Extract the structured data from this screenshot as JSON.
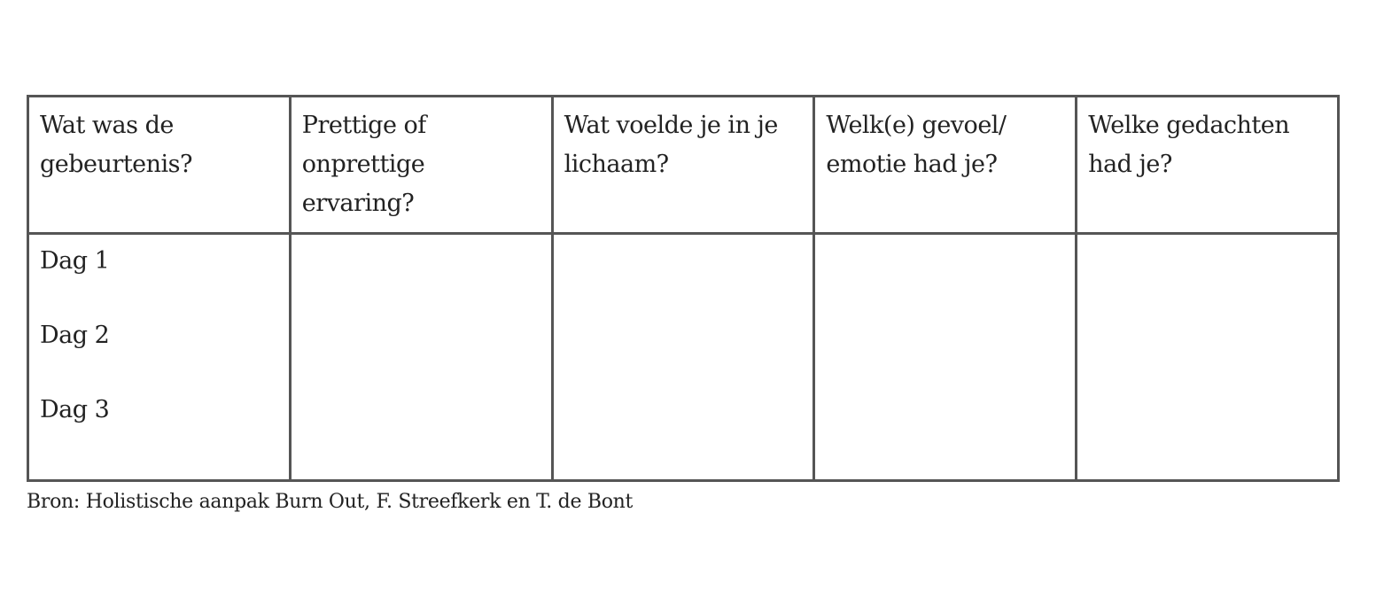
{
  "table": {
    "headers": [
      "Wat was de gebeurtenis?",
      "Prettige of onprettige ervaring?",
      "Wat voelde je in je lichaam?",
      "Welk(e) gevoel/ emotie had je?",
      "Welke gedachten had je?"
    ],
    "days": [
      "Dag 1",
      "Dag 2",
      "Dag 3"
    ]
  },
  "caption": "Bron: Holistische aanpak Burn Out, F. Streefkerk en T. de Bont"
}
